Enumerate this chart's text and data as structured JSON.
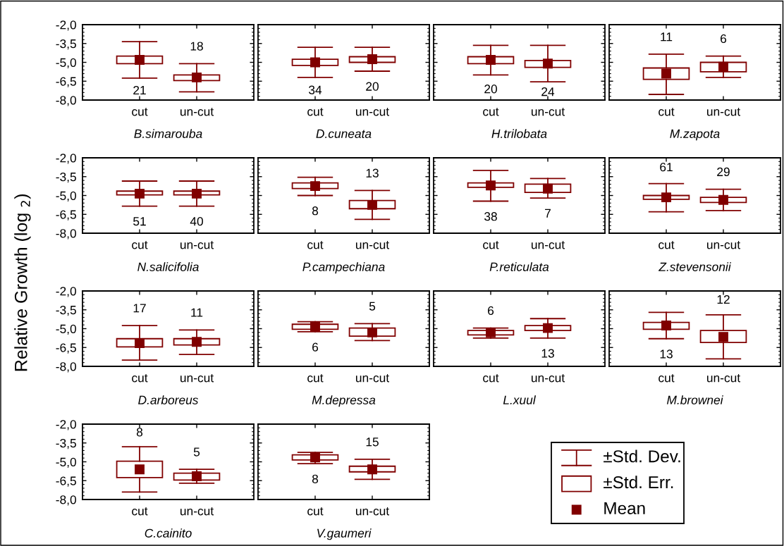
{
  "chart_data": [
    {
      "type": "box",
      "xlabel": "B.simarouba",
      "categories": [
        "cut",
        "un-cut"
      ],
      "color": "#800000",
      "boxes": [
        {
          "low": -6.25,
          "q1": -5.1,
          "median": -4.8,
          "q3": -4.5,
          "high": -3.35
        },
        {
          "low": -7.35,
          "q1": -6.45,
          "median": -6.2,
          "q3": -6.0,
          "high": -5.1
        }
      ],
      "ylim": [
        -8,
        -2
      ],
      "yticks": [
        {
          "value": -2,
          "label": "-2,0"
        },
        {
          "value": -3.5,
          "label": "-3,5"
        },
        {
          "value": -5,
          "label": "-5,0"
        },
        {
          "value": -6.5,
          "label": "-6,5"
        },
        {
          "value": -8,
          "label": "-8,0"
        }
      ],
      "annotations": [
        "21",
        "18"
      ]
    },
    {
      "type": "box",
      "xlabel": "D.cuneata",
      "categories": [
        "cut",
        "un-cut"
      ],
      "color": "#800000",
      "boxes": [
        {
          "low": -6.2,
          "q1": -5.25,
          "median": -5.0,
          "q3": -4.75,
          "high": -3.8
        },
        {
          "low": -5.7,
          "q1": -5.0,
          "median": -4.75,
          "q3": -4.55,
          "high": -3.8
        }
      ],
      "ylim": [
        -8,
        -2
      ],
      "yticks": [
        -2,
        -3.5,
        -5,
        -6.5,
        -8
      ],
      "tick_labels": "x",
      "annotations": [
        "34",
        "20"
      ]
    },
    {
      "type": "box",
      "xlabel": "H.trilobata",
      "categories": [
        "cut",
        "un-cut"
      ],
      "color": "#800000",
      "boxes": [
        {
          "low": -6.0,
          "q1": -5.1,
          "median": -4.8,
          "q3": -4.55,
          "high": -3.65
        },
        {
          "low": -6.55,
          "q1": -5.4,
          "median": -5.1,
          "q3": -4.85,
          "high": -3.65
        }
      ],
      "ylim": [
        -8,
        -2
      ],
      "yticks": [
        -2,
        -3.5,
        -5,
        -6.5,
        -8
      ],
      "tick_labels": "x",
      "annotations": [
        "20",
        "24"
      ]
    },
    {
      "type": "box",
      "xlabel": "M.zapota",
      "categories": [
        "cut",
        "un-cut"
      ],
      "color": "#800000",
      "boxes": [
        {
          "low": -7.55,
          "q1": -6.35,
          "median": -5.9,
          "q3": -5.45,
          "high": -4.35
        },
        {
          "low": -6.2,
          "q1": -5.75,
          "median": -5.35,
          "q3": -5.0,
          "high": -4.5
        }
      ],
      "ylim": [
        -8,
        -2
      ],
      "yticks": [
        -2,
        -3.5,
        -5,
        -6.5,
        -8
      ],
      "tick_labels": "x",
      "annotations": [
        "11",
        "6"
      ]
    },
    {
      "type": "box",
      "xlabel": "N.salicifolia",
      "categories": [
        "cut",
        "un-cut"
      ],
      "color": "#800000",
      "boxes": [
        {
          "low": -5.85,
          "q1": -4.95,
          "median": -4.85,
          "q3": -4.65,
          "high": -3.85
        },
        {
          "low": -5.85,
          "q1": -4.95,
          "median": -4.85,
          "q3": -4.65,
          "high": -3.85
        }
      ],
      "ylim": [
        -8,
        -2
      ],
      "yticks": [
        {
          "value": -2,
          "label": "-2,0"
        },
        {
          "value": -3.5,
          "label": "-3,5"
        },
        {
          "value": -5,
          "label": "-5,0"
        },
        {
          "value": -6.5,
          "label": "-6,5"
        },
        {
          "value": -8,
          "label": "-8,0"
        }
      ],
      "annotations": [
        "51",
        "40"
      ]
    },
    {
      "type": "box",
      "xlabel": "P.campechiana",
      "categories": [
        "cut",
        "un-cut"
      ],
      "color": "#800000",
      "boxes": [
        {
          "low": -5.0,
          "q1": -4.45,
          "median": -4.25,
          "q3": -4.0,
          "high": -3.55
        },
        {
          "low": -6.9,
          "q1": -6.05,
          "median": -5.75,
          "q3": -5.4,
          "high": -4.6
        }
      ],
      "ylim": [
        -8,
        -2
      ],
      "yticks": [
        -2,
        -3.5,
        -5,
        -6.5,
        -8
      ],
      "tick_labels": "x",
      "annotations": [
        "8",
        "13"
      ]
    },
    {
      "type": "box",
      "xlabel": "P.reticulata",
      "categories": [
        "cut",
        "un-cut"
      ],
      "color": "#800000",
      "boxes": [
        {
          "low": -5.45,
          "q1": -4.35,
          "median": -4.2,
          "q3": -4.0,
          "high": -3.0
        },
        {
          "low": -5.2,
          "q1": -4.75,
          "median": -4.45,
          "q3": -4.1,
          "high": -3.65
        }
      ],
      "ylim": [
        -8,
        -2
      ],
      "yticks": [
        -2,
        -3.5,
        -5,
        -6.5,
        -8
      ],
      "tick_labels": "x",
      "annotations": [
        "38",
        "7"
      ]
    },
    {
      "type": "box",
      "xlabel": "Z.stevensonii",
      "categories": [
        "cut",
        "un-cut"
      ],
      "color": "#800000",
      "boxes": [
        {
          "low": -6.3,
          "q1": -5.3,
          "median": -5.15,
          "q3": -5.0,
          "high": -4.05
        },
        {
          "low": -6.2,
          "q1": -5.55,
          "median": -5.35,
          "q3": -5.15,
          "high": -4.5
        }
      ],
      "ylim": [
        -8,
        -2
      ],
      "yticks": [
        -2,
        -3.5,
        -5,
        -6.5,
        -8
      ],
      "tick_labels": "x",
      "annotations": [
        "61",
        "29"
      ]
    },
    {
      "type": "box",
      "xlabel": "D.arboreus",
      "ylabel": "Relative Growth (log $_{2}$)",
      "categories": [
        "cut",
        "un-cut"
      ],
      "color": "#800000",
      "boxes": [
        {
          "low": -7.5,
          "q1": -6.45,
          "median": -6.15,
          "q3": -5.8,
          "high": -4.75
        },
        {
          "low": -7.05,
          "q1": -6.3,
          "median": -6.05,
          "q3": -5.8,
          "high": -5.1
        }
      ],
      "ylim": [
        -8,
        -2
      ],
      "yticks": [
        {
          "value": -2,
          "label": "-2,0"
        },
        {
          "value": -3.5,
          "label": "-3,5"
        },
        {
          "value": -5,
          "label": "-5,0"
        },
        {
          "value": -6.5,
          "label": "-6,5"
        },
        {
          "value": -8,
          "label": "-8,0"
        }
      ],
      "annotations": [
        "17",
        "11"
      ]
    },
    {
      "type": "box",
      "xlabel": "M.depressa",
      "categories": [
        "cut",
        "un-cut"
      ],
      "color": "#800000",
      "boxes": [
        {
          "low": -5.25,
          "q1": -5.05,
          "median": -4.8,
          "q3": -4.65,
          "high": -4.45
        },
        {
          "low": -5.95,
          "q1": -5.6,
          "median": -5.3,
          "q3": -4.95,
          "high": -4.6
        }
      ],
      "ylim": [
        -8,
        -2
      ],
      "yticks": [
        -2,
        -3.5,
        -5,
        -6.5,
        -8
      ],
      "tick_labels": "x",
      "annotations": [
        "6",
        "5"
      ]
    },
    {
      "type": "box",
      "xlabel": "L.xuul",
      "categories": [
        "cut",
        "un-cut"
      ],
      "color": "#800000",
      "boxes": [
        {
          "low": -5.75,
          "q1": -5.5,
          "median": -5.3,
          "q3": -5.15,
          "high": -4.95
        },
        {
          "low": -5.75,
          "q1": -5.15,
          "median": -4.95,
          "q3": -4.75,
          "high": -4.2
        }
      ],
      "ylim": [
        -8,
        -2
      ],
      "yticks": [
        -2,
        -3.5,
        -5,
        -6.5,
        -8
      ],
      "tick_labels": "x",
      "annotations": [
        "6",
        "13"
      ]
    },
    {
      "type": "box",
      "xlabel": "M.brownei",
      "categories": [
        "cut",
        "un-cut"
      ],
      "color": "#800000",
      "boxes": [
        {
          "low": -5.8,
          "q1": -5.05,
          "median": -4.75,
          "q3": -4.5,
          "high": -3.7
        },
        {
          "low": -7.4,
          "q1": -6.1,
          "median": -5.65,
          "q3": -5.15,
          "high": -3.9
        }
      ],
      "ylim": [
        -8,
        -2
      ],
      "yticks": [
        -2,
        -3.5,
        -5,
        -6.5,
        -8
      ],
      "tick_labels": "x",
      "annotations": [
        "13",
        "12"
      ]
    },
    {
      "type": "box",
      "xlabel": "C.cainito",
      "categories": [
        "cut",
        "un-cut"
      ],
      "color": "#800000",
      "boxes": [
        {
          "low": -7.4,
          "q1": -6.25,
          "median": -5.6,
          "q3": -4.95,
          "high": -3.8
        },
        {
          "low": -6.7,
          "q1": -6.45,
          "median": -6.15,
          "q3": -5.9,
          "high": -5.6
        }
      ],
      "ylim": [
        -8,
        -2
      ],
      "yticks": [
        {
          "value": -2,
          "label": "-2,0"
        },
        {
          "value": -3.5,
          "label": "-3,5"
        },
        {
          "value": -5,
          "label": "-5,0"
        },
        {
          "value": -6.5,
          "label": "-6,5"
        },
        {
          "value": -8,
          "label": "-8,0"
        }
      ],
      "annotations": [
        "8",
        "5"
      ]
    },
    {
      "type": "box",
      "xlabel": "V.gaumeri",
      "categories": [
        "cut",
        "un-cut"
      ],
      "color": "#800000",
      "boxes": [
        {
          "low": -5.15,
          "q1": -4.85,
          "median": -4.65,
          "q3": -4.45,
          "high": -4.25
        },
        {
          "low": -6.4,
          "q1": -5.8,
          "median": -5.6,
          "q3": -5.35,
          "high": -4.8
        }
      ],
      "ylim": [
        -8,
        -2
      ],
      "yticks": [
        -2,
        -3.5,
        -5,
        -6.5,
        -8
      ],
      "tick_labels": "x",
      "annotations": [
        "8",
        "15"
      ]
    },
    {
      "type": "other",
      "annotations": [
        "±Std. Dev.",
        "±Std. Err.",
        "Mean"
      ]
    }
  ]
}
